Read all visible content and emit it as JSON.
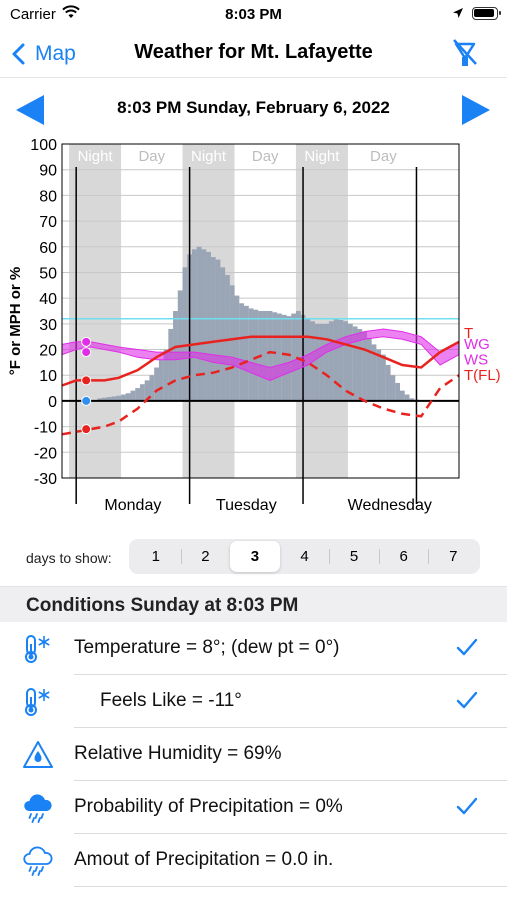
{
  "status": {
    "carrier": "Carrier",
    "time": "8:03 PM"
  },
  "nav": {
    "back_label": "Map",
    "title": "Weather for Mt. Lafayette"
  },
  "date_text": "8:03 PM Sunday, February 6, 2022",
  "chart_data": {
    "type": "line",
    "y_ticks": [
      "100",
      "90",
      "80",
      "70",
      "60",
      "50",
      "40",
      "30",
      "20",
      "10",
      "0",
      "-10",
      "-20",
      "-30"
    ],
    "ylim": [
      -30,
      100
    ],
    "ylabel": "°F or MPH or %",
    "period_labels": [
      "Night",
      "Day",
      "Night",
      "Day",
      "Night",
      "Day"
    ],
    "day_labels": [
      "Monday",
      "Tuesday",
      "Wednesday"
    ],
    "x_hours_range": [
      0,
      84
    ],
    "reference_line": 32,
    "series": [
      {
        "name": "T",
        "color": "#e8231f",
        "style": "solid",
        "x": [
          0,
          3,
          6,
          9,
          12,
          16,
          20,
          24,
          28,
          32,
          36,
          40,
          44,
          48,
          52,
          56,
          60,
          64,
          68,
          72,
          76,
          80,
          84
        ],
        "values": [
          6,
          8,
          8,
          8,
          9,
          12,
          17,
          21,
          22,
          23,
          24,
          25,
          25,
          25,
          25,
          24,
          22,
          20,
          17,
          14,
          13,
          19,
          23
        ]
      },
      {
        "name": "T(FL)",
        "color": "#e8231f",
        "style": "dashed",
        "x": [
          0,
          3,
          6,
          9,
          12,
          16,
          20,
          24,
          28,
          32,
          36,
          40,
          44,
          48,
          52,
          56,
          60,
          64,
          68,
          72,
          76,
          80,
          84
        ],
        "values": [
          -13,
          -12,
          -11,
          -10,
          -8,
          -3,
          4,
          8,
          10,
          11,
          13,
          16,
          19,
          18,
          15,
          10,
          4,
          0,
          -3,
          -5,
          -6,
          5,
          10
        ]
      },
      {
        "name": "WS",
        "color": "#e02ee8",
        "style": "band",
        "x": [
          0,
          3,
          6,
          9,
          12,
          16,
          20,
          24,
          28,
          32,
          36,
          40,
          44,
          48,
          52,
          56,
          60,
          64,
          68,
          72,
          76,
          80,
          84
        ],
        "values": [
          18,
          20,
          21,
          20,
          19,
          17,
          16,
          16,
          17,
          15,
          14,
          11,
          8,
          11,
          14,
          19,
          22,
          24,
          25,
          24,
          22,
          14,
          18
        ]
      },
      {
        "name": "WG",
        "color": "#e02ee8",
        "style": "band",
        "x": [
          0,
          3,
          6,
          9,
          12,
          16,
          20,
          24,
          28,
          32,
          36,
          40,
          44,
          48,
          52,
          56,
          60,
          64,
          68,
          72,
          76,
          80,
          84
        ],
        "values": [
          22,
          23,
          23,
          22,
          21,
          20,
          19,
          19,
          19,
          18,
          17,
          15,
          13,
          15,
          18,
          22,
          25,
          27,
          28,
          27,
          25,
          19,
          23
        ]
      },
      {
        "name": "precip",
        "color": "#9aa5b6",
        "style": "bars",
        "x": [
          8,
          12,
          14,
          16,
          18,
          19,
          20,
          21,
          22,
          23,
          24,
          25,
          26,
          27,
          28,
          29,
          30,
          31,
          32,
          33,
          34,
          35,
          36,
          37,
          38,
          40,
          42,
          44,
          46,
          48,
          50,
          52,
          54,
          56,
          58,
          60,
          62,
          64,
          66,
          68,
          70,
          72,
          74,
          76
        ],
        "values": [
          1,
          2,
          3,
          5,
          8,
          10,
          13,
          16,
          20,
          28,
          35,
          43,
          52,
          57,
          59,
          60,
          59,
          58,
          56,
          55,
          52,
          49,
          45,
          41,
          38,
          36,
          35,
          35,
          34,
          33,
          35,
          32,
          30,
          30,
          32,
          31,
          29,
          27,
          22,
          18,
          10,
          4,
          1,
          0
        ]
      }
    ],
    "legend": [
      "T",
      "WG",
      "WS",
      "T(FL)"
    ],
    "current_markers": [
      {
        "series": "WG",
        "x": 3,
        "value": 23,
        "color": "#e02ee8"
      },
      {
        "series": "WS",
        "x": 3,
        "value": 19,
        "color": "#e02ee8"
      },
      {
        "series": "T",
        "x": 3,
        "value": 8,
        "color": "#e8231f"
      },
      {
        "series": "dew",
        "x": 3,
        "value": 0,
        "color": "#2f8ff0"
      },
      {
        "series": "T(FL)",
        "x": 3,
        "value": -11,
        "color": "#e8231f"
      }
    ]
  },
  "days": {
    "label": "days to show:",
    "options": [
      "1",
      "2",
      "3",
      "4",
      "5",
      "6",
      "7"
    ],
    "selected_index": 2
  },
  "conditions": {
    "header": "Conditions Sunday at 8:03 PM",
    "rows": [
      {
        "icon": "thermometer-snowflake-icon",
        "text": "Temperature  = 8°; (dew pt = 0°)",
        "checked": true
      },
      {
        "icon": "thermometer-snowflake-icon",
        "text": "Feels Like  = -11°",
        "checked": true
      },
      {
        "icon": "humidity-drop-icon",
        "text": "Relative Humidity  = 69%",
        "checked": false
      },
      {
        "icon": "cloud-rain-filled-icon",
        "text": "Probability of Precipitation  = 0%",
        "checked": true
      },
      {
        "icon": "cloud-rain-outline-icon",
        "text": "Amout of Precipitation  = 0.0 in.",
        "checked": false
      }
    ]
  },
  "colors": {
    "accent": "#1a82f4",
    "temp": "#e8231f",
    "wind": "#e02ee8",
    "precip": "#9aa5b6",
    "night_shade": "#d8d8d8"
  }
}
